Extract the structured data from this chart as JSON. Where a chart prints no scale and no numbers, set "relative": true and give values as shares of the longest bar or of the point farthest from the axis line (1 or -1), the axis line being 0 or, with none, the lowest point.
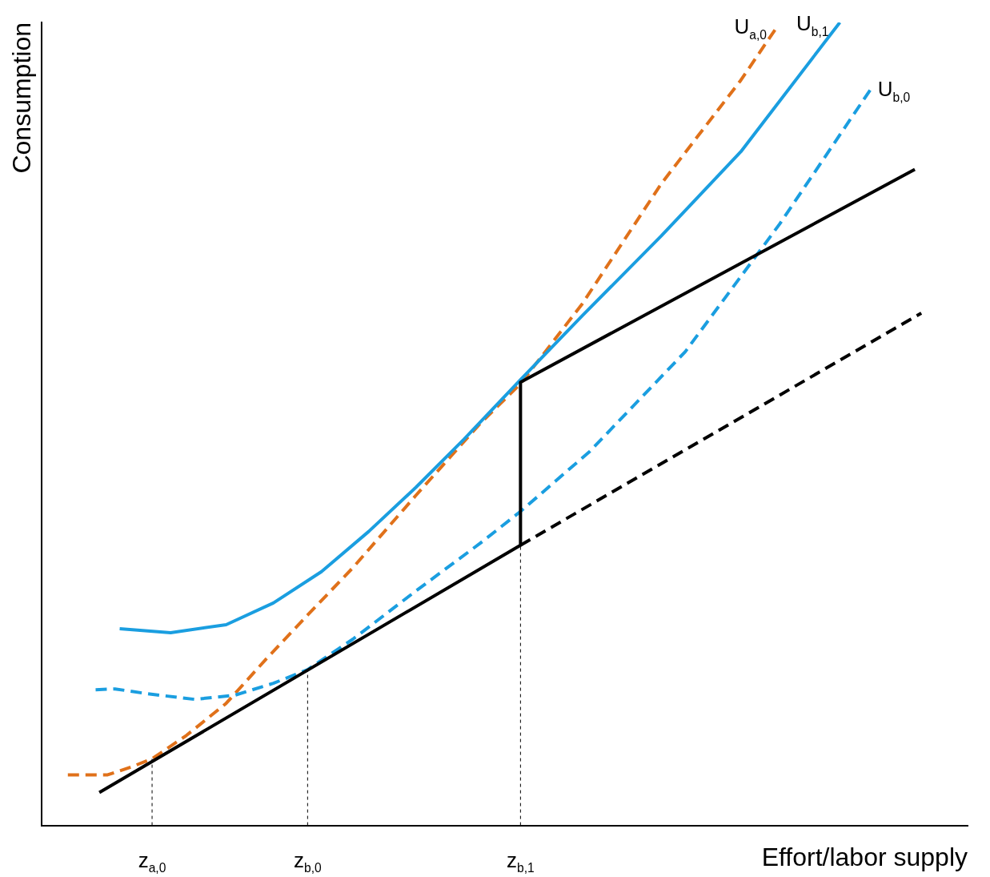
{
  "chart_data": {
    "type": "line",
    "relative": true,
    "xlabel": "Effort/labor supply",
    "ylabel": "Consumption",
    "xlim": [
      0,
      1
    ],
    "xticks": [
      {
        "value": 0.119,
        "label": "z$_{a,0}$"
      },
      {
        "value": 0.287,
        "label": "z$_{b,0}$"
      },
      {
        "value": 0.517,
        "label": "z$_{b,1}$"
      }
    ],
    "tick_labels": "x",
    "legend": false,
    "grid": false,
    "marker": "none",
    "series": [
      {
        "color": "#000000",
        "line_style": "solid",
        "x": [
          0.062,
          0.517,
          0.517,
          0.943
        ],
        "values": [
          0.041,
          0.349,
          0.552,
          0.817
        ]
      },
      {
        "color": "#000000",
        "line_style": "dashed",
        "x": [
          0.517,
          0.95
        ],
        "values": [
          0.349,
          0.638
        ]
      },
      {
        "name": "U$_{b,1}$",
        "color": "#1a9ee0",
        "line_style": "solid",
        "x": [
          0.084,
          0.139,
          0.199,
          0.25,
          0.302,
          0.353,
          0.404,
          0.456,
          0.517,
          0.584,
          0.669,
          0.755,
          0.862
        ],
        "values": [
          0.245,
          0.24,
          0.25,
          0.277,
          0.316,
          0.366,
          0.421,
          0.481,
          0.555,
          0.635,
          0.734,
          0.839,
          1.0
        ]
      },
      {
        "name": "U$_{b,0}$",
        "color": "#1a9ee0",
        "line_style": "dashed",
        "x": [
          0.058,
          0.079,
          0.114,
          0.165,
          0.208,
          0.25,
          0.287,
          0.336,
          0.404,
          0.473,
          0.517,
          0.592,
          0.695,
          0.797,
          0.896
        ],
        "values": [
          0.169,
          0.17,
          0.164,
          0.157,
          0.162,
          0.177,
          0.194,
          0.232,
          0.292,
          0.351,
          0.391,
          0.466,
          0.59,
          0.749,
          0.918
        ]
      },
      {
        "name": "U$_{a,0}$",
        "color": "#e0711a",
        "line_style": "dashed",
        "x": [
          0.028,
          0.071,
          0.097,
          0.119,
          0.156,
          0.199,
          0.242,
          0.287,
          0.336,
          0.404,
          0.473,
          0.517,
          0.584,
          0.669,
          0.755,
          0.795
        ],
        "values": [
          0.063,
          0.063,
          0.073,
          0.083,
          0.112,
          0.152,
          0.207,
          0.262,
          0.321,
          0.411,
          0.5,
          0.55,
          0.65,
          0.799,
          0.928,
          0.996
        ]
      },
      {
        "color": "#000000",
        "line_style": "dotted",
        "x": [
          0.119,
          0.119
        ],
        "values": [
          0,
          0.083
        ]
      },
      {
        "color": "#000000",
        "line_style": "dotted",
        "x": [
          0.287,
          0.287
        ],
        "values": [
          0,
          0.194
        ]
      },
      {
        "color": "#000000",
        "line_style": "dotted",
        "x": [
          0.517,
          0.517
        ],
        "values": [
          0,
          0.349
        ]
      }
    ]
  }
}
